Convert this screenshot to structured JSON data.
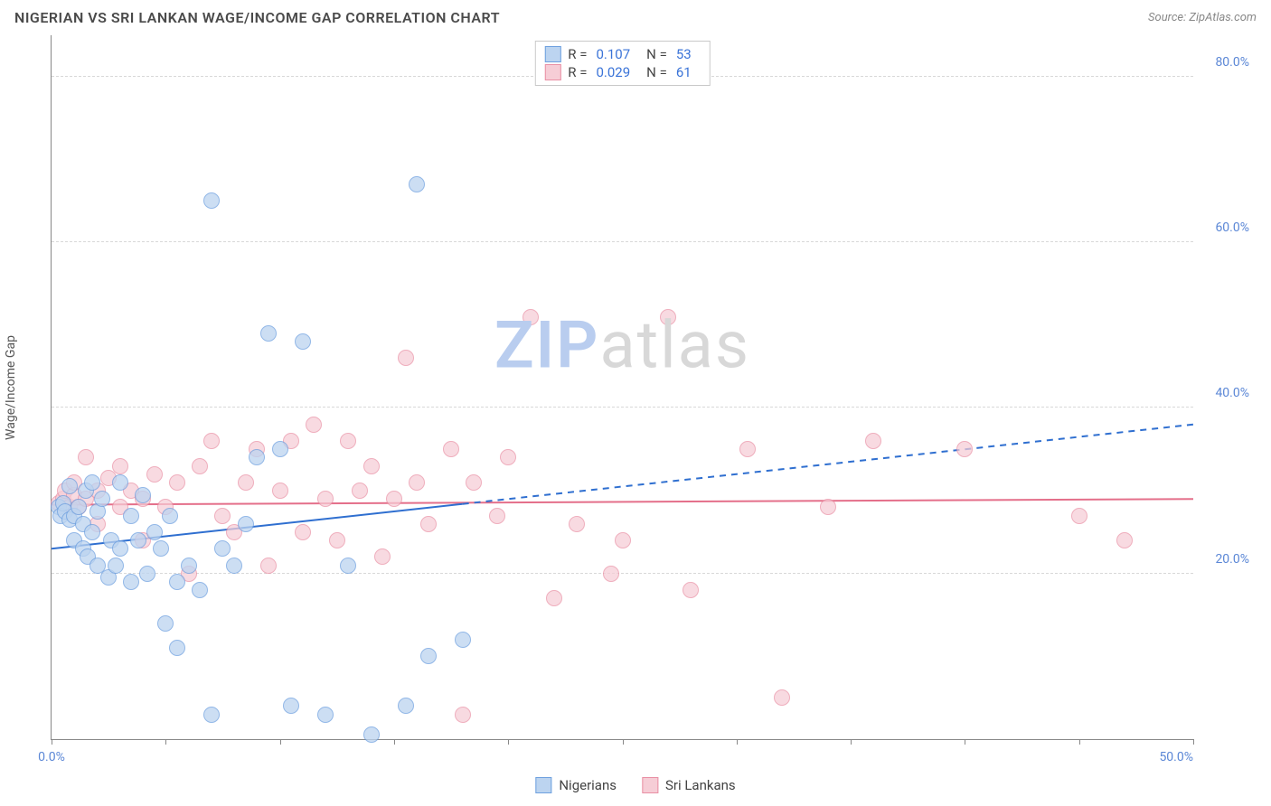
{
  "header": {
    "title": "NIGERIAN VS SRI LANKAN WAGE/INCOME GAP CORRELATION CHART",
    "source": "Source: ZipAtlas.com"
  },
  "axes": {
    "y_label": "Wage/Income Gap",
    "x_min": 0,
    "x_max": 50,
    "y_min": 0,
    "y_max": 85,
    "x_ticks": [
      0,
      5,
      10,
      15,
      20,
      25,
      30,
      35,
      40,
      45,
      50
    ],
    "x_tick_labels": {
      "0": "0.0%",
      "50": "50.0%"
    },
    "y_gridlines": [
      20,
      40,
      60,
      80
    ],
    "y_tick_labels": {
      "20": "20.0%",
      "40": "40.0%",
      "60": "60.0%",
      "80": "80.0%"
    },
    "grid_color": "#d8d8d8",
    "axis_color": "#888888",
    "tick_label_color": "#5b87d6",
    "tick_label_fontsize": 14
  },
  "series": {
    "a": {
      "label": "Nigerians",
      "fill": "#bcd4f0",
      "stroke": "#6ea0df",
      "opacity": 0.75,
      "radius": 9,
      "R": "0.107",
      "N": "53",
      "trend": {
        "y_at_xmin": 23,
        "y_at_xmax": 38,
        "solid_until_x": 18,
        "color": "#2f6fd0",
        "width": 2
      },
      "points": [
        [
          0.3,
          28
        ],
        [
          0.4,
          27
        ],
        [
          0.5,
          28.5
        ],
        [
          0.6,
          27.5
        ],
        [
          0.8,
          26.5
        ],
        [
          0.8,
          30.5
        ],
        [
          1.0,
          27
        ],
        [
          1.0,
          24
        ],
        [
          1.2,
          28
        ],
        [
          1.4,
          23
        ],
        [
          1.4,
          26
        ],
        [
          1.5,
          30
        ],
        [
          1.6,
          22
        ],
        [
          1.8,
          25
        ],
        [
          1.8,
          31
        ],
        [
          2.0,
          21
        ],
        [
          2.0,
          27.5
        ],
        [
          2.2,
          29
        ],
        [
          2.5,
          19.5
        ],
        [
          2.6,
          24
        ],
        [
          2.8,
          21
        ],
        [
          3.0,
          31
        ],
        [
          3.0,
          23
        ],
        [
          3.5,
          19
        ],
        [
          3.5,
          27
        ],
        [
          3.8,
          24
        ],
        [
          4.0,
          29.5
        ],
        [
          4.2,
          20
        ],
        [
          4.5,
          25
        ],
        [
          4.8,
          23
        ],
        [
          5.0,
          14
        ],
        [
          5.2,
          27
        ],
        [
          5.5,
          19
        ],
        [
          5.5,
          11
        ],
        [
          6.0,
          21
        ],
        [
          6.5,
          18
        ],
        [
          7.0,
          65
        ],
        [
          7.0,
          3
        ],
        [
          7.5,
          23
        ],
        [
          8.0,
          21
        ],
        [
          8.5,
          26
        ],
        [
          9.0,
          34
        ],
        [
          9.5,
          49
        ],
        [
          10.0,
          35
        ],
        [
          10.5,
          4
        ],
        [
          11.0,
          48
        ],
        [
          12.0,
          3
        ],
        [
          13.0,
          21
        ],
        [
          14.0,
          0.5
        ],
        [
          15.5,
          4
        ],
        [
          16.0,
          67
        ],
        [
          16.5,
          10
        ],
        [
          18.0,
          12
        ]
      ]
    },
    "b": {
      "label": "Sri Lankans",
      "fill": "#f6cdd6",
      "stroke": "#e98fa4",
      "opacity": 0.72,
      "radius": 9,
      "R": "0.029",
      "N": "61",
      "trend": {
        "y_at_xmin": 28.3,
        "y_at_xmax": 29,
        "solid_until_x": 50,
        "color": "#e46f8a",
        "width": 2
      },
      "points": [
        [
          0.3,
          28.5
        ],
        [
          0.5,
          29
        ],
        [
          0.6,
          30
        ],
        [
          0.8,
          28
        ],
        [
          1.0,
          29.5
        ],
        [
          1.0,
          31
        ],
        [
          1.2,
          28
        ],
        [
          1.5,
          29
        ],
        [
          1.5,
          34
        ],
        [
          2.0,
          30
        ],
        [
          2.0,
          26
        ],
        [
          2.5,
          31.5
        ],
        [
          3.0,
          28
        ],
        [
          3.0,
          33
        ],
        [
          3.5,
          30
        ],
        [
          4.0,
          24
        ],
        [
          4.0,
          29
        ],
        [
          4.5,
          32
        ],
        [
          5.0,
          28
        ],
        [
          5.5,
          31
        ],
        [
          6.0,
          20
        ],
        [
          6.5,
          33
        ],
        [
          7.0,
          36
        ],
        [
          7.5,
          27
        ],
        [
          8.0,
          25
        ],
        [
          8.5,
          31
        ],
        [
          9.0,
          35
        ],
        [
          9.5,
          21
        ],
        [
          10.0,
          30
        ],
        [
          10.5,
          36
        ],
        [
          11.0,
          25
        ],
        [
          11.5,
          38
        ],
        [
          12.0,
          29
        ],
        [
          12.5,
          24
        ],
        [
          13.0,
          36
        ],
        [
          13.5,
          30
        ],
        [
          14.0,
          33
        ],
        [
          14.5,
          22
        ],
        [
          15.0,
          29
        ],
        [
          15.5,
          46
        ],
        [
          16.0,
          31
        ],
        [
          16.5,
          26
        ],
        [
          17.5,
          35
        ],
        [
          18.0,
          3
        ],
        [
          18.5,
          31
        ],
        [
          19.5,
          27
        ],
        [
          20.0,
          34
        ],
        [
          21.0,
          51
        ],
        [
          22.0,
          17
        ],
        [
          23.0,
          26
        ],
        [
          24.5,
          20
        ],
        [
          25.0,
          24
        ],
        [
          27.0,
          51
        ],
        [
          28.0,
          18
        ],
        [
          30.5,
          35
        ],
        [
          32.0,
          5
        ],
        [
          34.0,
          28
        ],
        [
          36.0,
          36
        ],
        [
          40.0,
          35
        ],
        [
          45.0,
          27
        ],
        [
          47.0,
          24
        ]
      ]
    }
  },
  "stats_legend": {
    "labels": {
      "R": "R =",
      "N": "N ="
    }
  },
  "watermark": {
    "bold": "ZIP",
    "rest": "atlas"
  },
  "bottom_legend": {
    "order": [
      "a",
      "b"
    ]
  }
}
